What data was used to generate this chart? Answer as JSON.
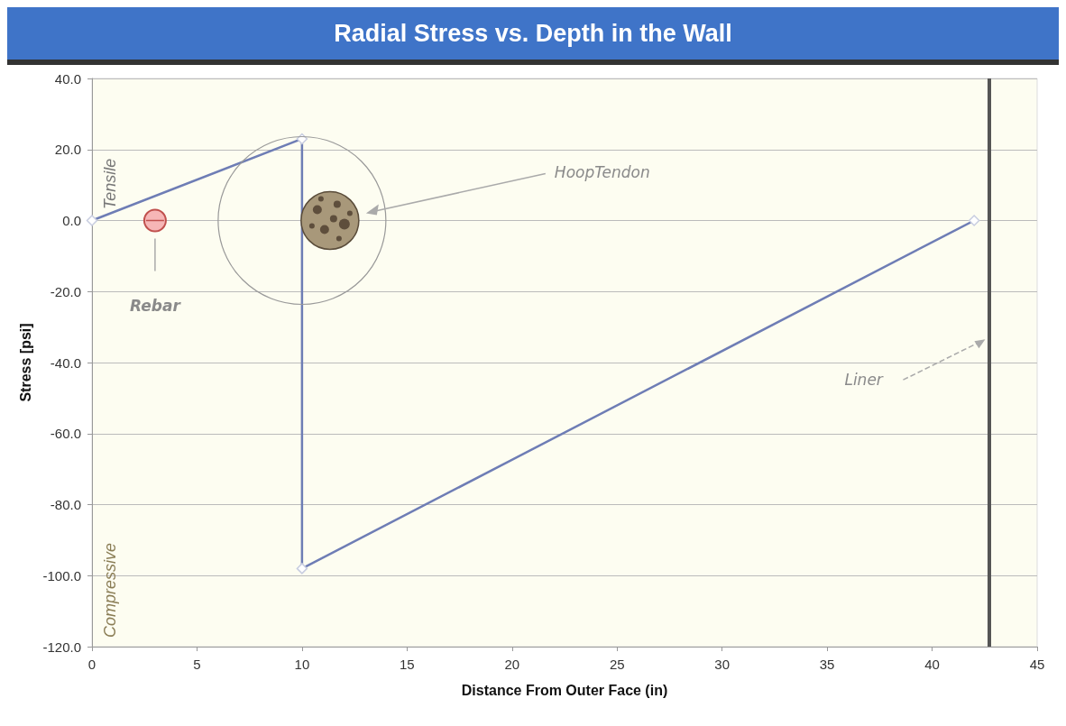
{
  "chart_data": {
    "type": "line",
    "title": "Radial Stress vs. Depth in the Wall",
    "xlabel": "Distance From Outer Face (in)",
    "ylabel": "Stress [psi]",
    "x": [
      0,
      10,
      10,
      42
    ],
    "series": [
      {
        "color": "#6e7db5",
        "values": [
          0,
          23,
          -98,
          0
        ]
      }
    ],
    "xlim": [
      0,
      45
    ],
    "xticks": [
      0,
      5,
      10,
      15,
      20,
      25,
      30,
      35,
      40,
      45
    ],
    "ylim": [
      -120,
      40
    ],
    "yticks": [
      {
        "value": -120,
        "label": "-120.0"
      },
      {
        "value": -100,
        "label": "-100.0"
      },
      {
        "value": -80,
        "label": "-80.0"
      },
      {
        "value": -60,
        "label": "-60.0"
      },
      {
        "value": -40,
        "label": "-40.0"
      },
      {
        "value": -20,
        "label": "-20.0"
      },
      {
        "value": 0,
        "label": "0.0"
      },
      {
        "value": 20,
        "label": "20.0"
      },
      {
        "value": 40,
        "label": "40.0"
      }
    ],
    "grid": "y",
    "marker": "diamond",
    "line_style": "solid",
    "ref_lines": [
      {
        "axis": "x",
        "value": 42.7,
        "color": "#555555"
      }
    ],
    "annotations": [
      "Tensile",
      "Compressive",
      "Rebar",
      "HoopTendon",
      "Liner"
    ]
  }
}
